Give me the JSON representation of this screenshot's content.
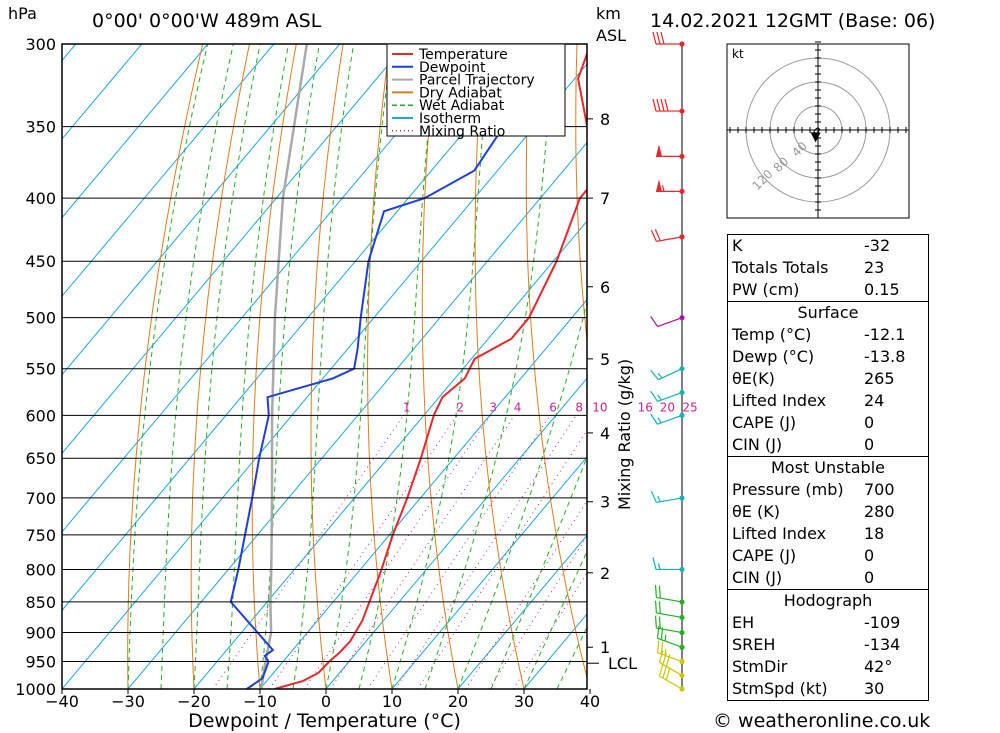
{
  "header": {
    "hpa_unit": "hPa",
    "location": "0°00' 0°00'W 489m ASL",
    "km_unit": "km",
    "asl": "ASL",
    "datetime": "14.02.2021 12GMT (Base: 06)"
  },
  "chart_data": {
    "type": "skew-t log-p",
    "xlabel": "Dewpoint / Temperature (°C)",
    "ylabel_left": "hPa",
    "ylabel_right": "Mixing Ratio (g/kg)",
    "x_ticks": [
      -40,
      -30,
      -20,
      -10,
      0,
      10,
      20,
      30,
      40
    ],
    "pressure_levels": [
      300,
      350,
      400,
      450,
      500,
      550,
      600,
      650,
      700,
      750,
      800,
      850,
      900,
      950,
      1000
    ],
    "height_km_ticks": [
      {
        "km": 1,
        "p": 925
      },
      {
        "km": 2,
        "p": 805
      },
      {
        "km": 3,
        "p": 705
      },
      {
        "km": 4,
        "p": 620
      },
      {
        "km": 5,
        "p": 540
      },
      {
        "km": 6,
        "p": 472
      },
      {
        "km": 7,
        "p": 400
      },
      {
        "km": 8,
        "p": 345
      }
    ],
    "lcl": {
      "label": "LCL",
      "p": 953
    },
    "mixing_ratio_labels": [
      "1",
      "2",
      "3",
      "4",
      "6",
      "8",
      "10",
      "16",
      "20",
      "25"
    ],
    "mixing_ratio_values": [
      1,
      2,
      3,
      4,
      6,
      8,
      10,
      16,
      20,
      25
    ],
    "legend": [
      {
        "name": "Temperature",
        "color": "#e8262c",
        "style": "solid"
      },
      {
        "name": "Dewpoint",
        "color": "#1f3fd8",
        "style": "solid"
      },
      {
        "name": "Parcel Trajectory",
        "color": "#a9a9a9",
        "style": "solid"
      },
      {
        "name": "Dry Adiabat",
        "color": "#e07b1a",
        "style": "solid"
      },
      {
        "name": "Wet Adiabat",
        "color": "#22b022",
        "style": "dashed"
      },
      {
        "name": "Isotherm",
        "color": "#1da6e8",
        "style": "solid"
      },
      {
        "name": "Mixing Ratio",
        "color": "#d0208a",
        "style": "dotted"
      }
    ],
    "temperature_profile": [
      [
        1000,
        -7.8
      ],
      [
        985,
        -4.5
      ],
      [
        970,
        -3.2
      ],
      [
        950,
        -3.0
      ],
      [
        935,
        -2.6
      ],
      [
        915,
        -2.4
      ],
      [
        880,
        -3.2
      ],
      [
        850,
        -4.5
      ],
      [
        800,
        -6.8
      ],
      [
        750,
        -9.5
      ],
      [
        700,
        -12.0
      ],
      [
        650,
        -15.0
      ],
      [
        600,
        -18.5
      ],
      [
        580,
        -19.5
      ],
      [
        560,
        -18.5
      ],
      [
        540,
        -19.5
      ],
      [
        520,
        -16.5
      ],
      [
        500,
        -16.5
      ],
      [
        450,
        -19.5
      ],
      [
        400,
        -24.0
      ],
      [
        385,
        -24.0
      ],
      [
        350,
        -32.0
      ],
      [
        320,
        -39.5
      ],
      [
        300,
        -42.0
      ]
    ],
    "dewpoint_profile": [
      [
        1000,
        -12.0
      ],
      [
        980,
        -11.0
      ],
      [
        950,
        -12.2
      ],
      [
        940,
        -13.5
      ],
      [
        930,
        -13.0
      ],
      [
        850,
        -25.5
      ],
      [
        800,
        -28.5
      ],
      [
        700,
        -35.5
      ],
      [
        650,
        -39.5
      ],
      [
        600,
        -43.5
      ],
      [
        580,
        -46.0
      ],
      [
        560,
        -38.5
      ],
      [
        550,
        -36.5
      ],
      [
        530,
        -38.5
      ],
      [
        500,
        -42.0
      ],
      [
        450,
        -48.0
      ],
      [
        410,
        -52.0
      ],
      [
        400,
        -47.5
      ],
      [
        380,
        -43.5
      ],
      [
        330,
        -45.5
      ],
      [
        300,
        -50.0
      ]
    ],
    "parcel_profile": [
      [
        1000,
        -9.8
      ],
      [
        953,
        -12.5
      ],
      [
        900,
        -15.5
      ],
      [
        850,
        -19.5
      ],
      [
        800,
        -23.5
      ],
      [
        700,
        -32.5
      ],
      [
        600,
        -43.0
      ],
      [
        500,
        -55.0
      ],
      [
        400,
        -69.0
      ],
      [
        300,
        -85.0
      ]
    ],
    "wind_barbs": [
      {
        "p": 1000,
        "dir": 300,
        "kt": 30
      },
      {
        "p": 975,
        "dir": 300,
        "kt": 30
      },
      {
        "p": 950,
        "dir": 290,
        "kt": 25
      },
      {
        "p": 925,
        "dir": 290,
        "kt": 25
      },
      {
        "p": 900,
        "dir": 280,
        "kt": 20
      },
      {
        "p": 875,
        "dir": 280,
        "kt": 20
      },
      {
        "p": 850,
        "dir": 280,
        "kt": 20
      },
      {
        "p": 800,
        "dir": 270,
        "kt": 15
      },
      {
        "p": 700,
        "dir": 260,
        "kt": 15
      },
      {
        "p": 600,
        "dir": 250,
        "kt": 15
      },
      {
        "p": 575,
        "dir": 250,
        "kt": 15
      },
      {
        "p": 550,
        "dir": 245,
        "kt": 15
      },
      {
        "p": 500,
        "dir": 250,
        "kt": 10
      },
      {
        "p": 430,
        "dir": 260,
        "kt": 20
      },
      {
        "p": 395,
        "dir": 270,
        "kt": 55
      },
      {
        "p": 370,
        "dir": 270,
        "kt": 50
      },
      {
        "p": 340,
        "dir": 270,
        "kt": 40
      },
      {
        "p": 300,
        "dir": 270,
        "kt": 30
      }
    ],
    "hodograph": {
      "unit_label": "kt",
      "ring_labels": [
        "40",
        "80",
        "120"
      ],
      "trace_uv": [
        [
          -2,
          -9
        ],
        [
          -4,
          -5
        ],
        [
          -5,
          -2
        ],
        [
          -3,
          1
        ],
        [
          0,
          3
        ],
        [
          2,
          1
        ],
        [
          0,
          -3
        ]
      ],
      "storm_motion_uv": [
        -3,
        -8
      ]
    }
  },
  "indices": {
    "basic": [
      {
        "label": "K",
        "value": "-32"
      },
      {
        "label": "Totals Totals",
        "value": "23"
      },
      {
        "label": "PW (cm)",
        "value": "0.15"
      }
    ],
    "surface": {
      "title": "Surface",
      "rows": [
        {
          "label": "Temp (°C)",
          "value": "-12.1"
        },
        {
          "label": "Dewp (°C)",
          "value": "-13.8"
        },
        {
          "label": "θE(K)",
          "value": "265"
        },
        {
          "label": "Lifted Index",
          "value": "24"
        },
        {
          "label": "CAPE (J)",
          "value": "0"
        },
        {
          "label": "CIN (J)",
          "value": "0"
        }
      ]
    },
    "most_unstable": {
      "title": "Most Unstable",
      "rows": [
        {
          "label": "Pressure (mb)",
          "value": "700"
        },
        {
          "label": "θE (K)",
          "value": "280"
        },
        {
          "label": "Lifted Index",
          "value": "18"
        },
        {
          "label": "CAPE (J)",
          "value": "0"
        },
        {
          "label": "CIN (J)",
          "value": "0"
        }
      ]
    },
    "hodograph": {
      "title": "Hodograph",
      "rows": [
        {
          "label": "EH",
          "value": "-109"
        },
        {
          "label": "SREH",
          "value": "-134"
        },
        {
          "label": "StmDir",
          "value": "42°"
        },
        {
          "label": "StmSpd (kt)",
          "value": "30"
        }
      ]
    }
  },
  "footer": {
    "credit": "© weatheronline.co.uk"
  }
}
